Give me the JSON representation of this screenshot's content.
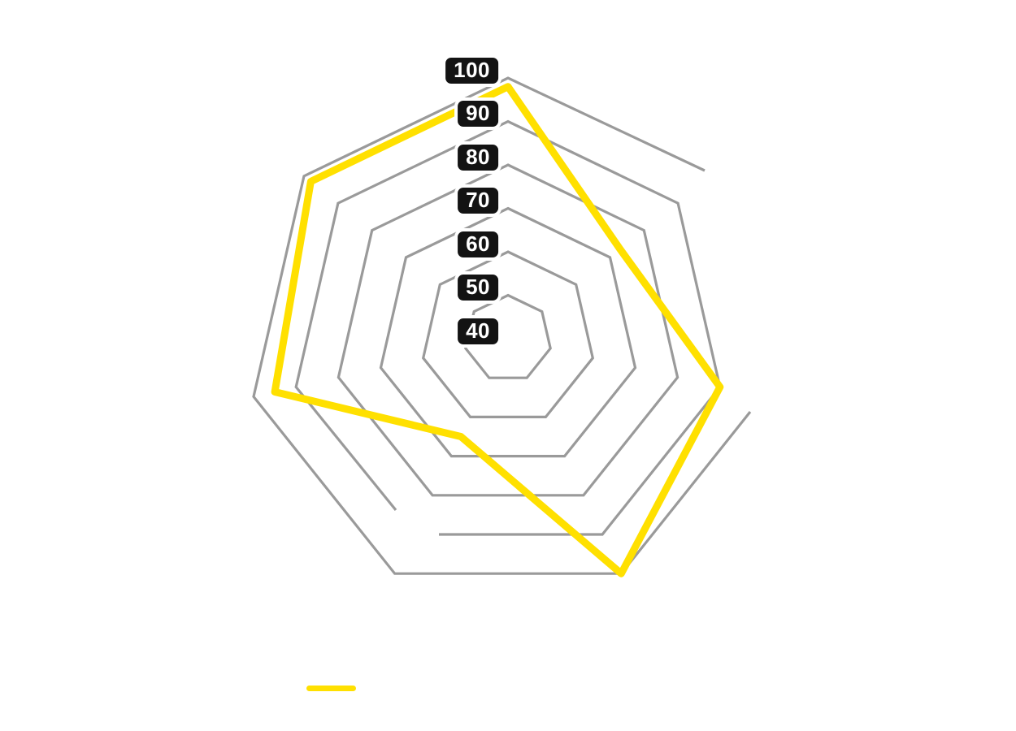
{
  "page": {
    "background": "#ffffff"
  },
  "chart_data": {
    "type": "radar",
    "title": "",
    "axes_count": 7,
    "grid_shape": "heptagon",
    "grid_on": true,
    "grid_color": "#9a9a9a",
    "categories": [
      "",
      "",
      "",
      "",
      "",
      "",
      ""
    ],
    "series": [
      {
        "name": "",
        "color": "#ffe000",
        "values": [
          98,
          73,
          90,
          100,
          65,
          95,
          98
        ]
      }
    ],
    "scale": {
      "min": 40,
      "max": 100,
      "step": 10,
      "rings": [
        50,
        60,
        70,
        80,
        90,
        100
      ]
    },
    "tick_labels": [
      "100",
      "90",
      "80",
      "70",
      "60",
      "50",
      "40"
    ],
    "tick_badge": {
      "background": "#131313",
      "text_color": "#ffffff"
    },
    "legend": {
      "position": "bottom",
      "swatch_color": "#ffe000",
      "label": ""
    }
  }
}
